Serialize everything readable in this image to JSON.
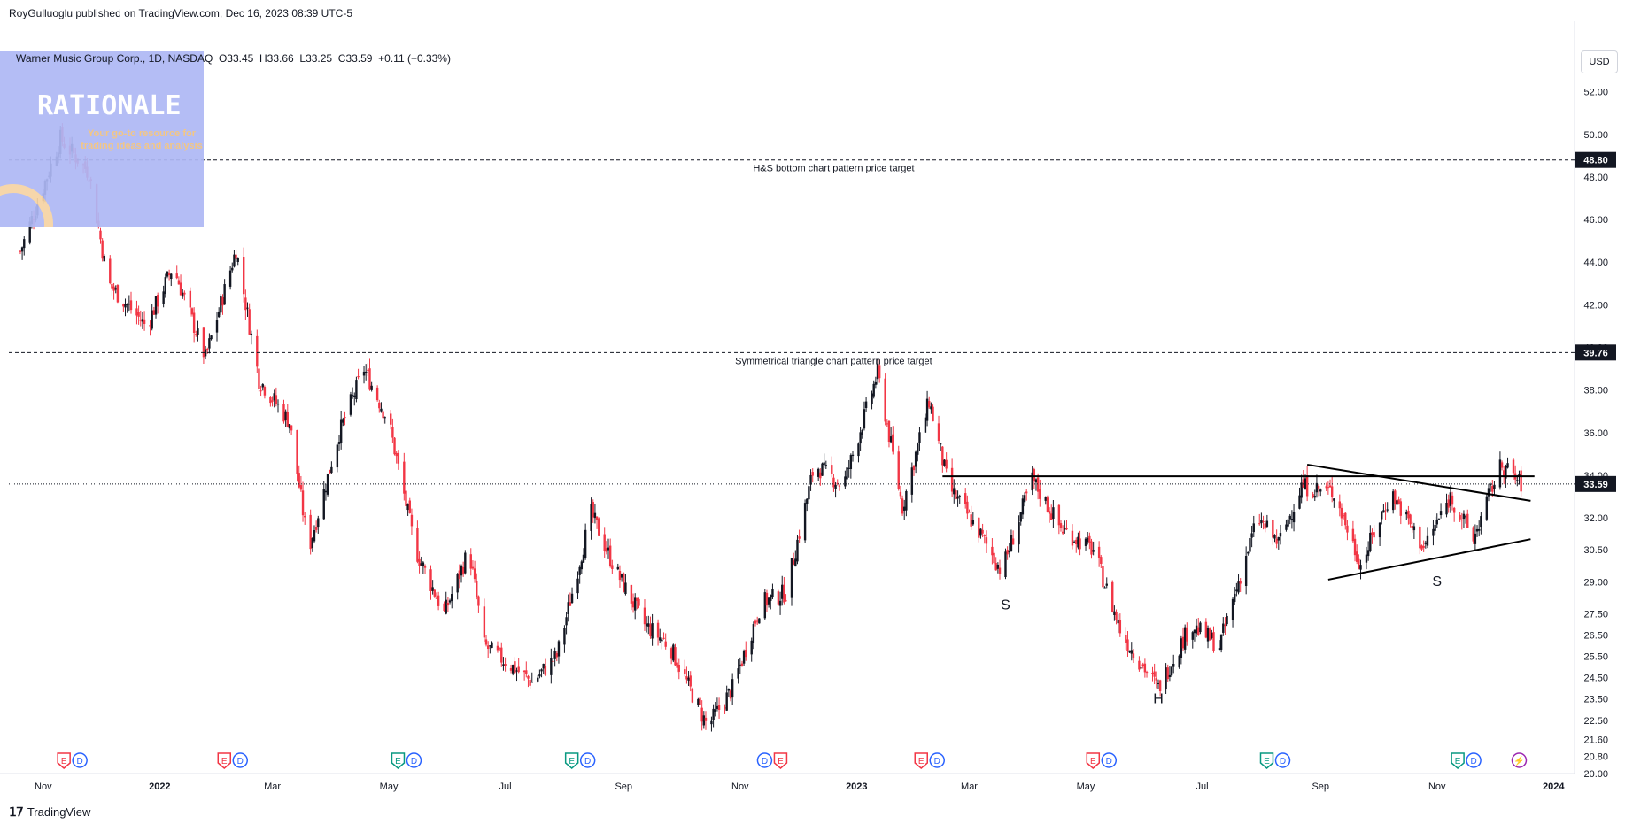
{
  "attribution": "RoyGulluoglu published on TradingView.com, Dec 16, 2023 08:39 UTC-5",
  "ohlc_line": {
    "symbol": "Warner Music Group Corp., 1D, NASDAQ",
    "o_label": "O",
    "o": "33.45",
    "h_label": "H",
    "h": "33.66",
    "l_label": "L",
    "l": "33.25",
    "c_label": "C",
    "c": "33.59",
    "change": "+0.11 (+0.33%)"
  },
  "logo": {
    "title": "RATIONALE",
    "tagline": "Your go-to resource for trading ideas and analysis"
  },
  "currency": "USD",
  "footer": {
    "brand": "TradingView"
  },
  "colors": {
    "up": "#131722",
    "down": "#f23645",
    "line": "#131722",
    "axis_tag": "#131722"
  },
  "chart_data": {
    "type": "candlestick",
    "title": "Warner Music Group Corp., 1D, NASDAQ",
    "ylim": [
      19.9,
      53.0
    ],
    "y_ticks": [
      "52.00",
      "50.00",
      "48.00",
      "46.00",
      "44.00",
      "42.00",
      "40.00",
      "38.00",
      "36.00",
      "34.00",
      "32.00",
      "30.50",
      "29.00",
      "27.50",
      "26.50",
      "25.50",
      "24.50",
      "23.50",
      "22.50",
      "21.60",
      "20.80",
      "20.00"
    ],
    "x_ticks": [
      "Nov",
      "2022",
      "Mar",
      "May",
      "Jul",
      "Sep",
      "Nov",
      "2023",
      "Mar",
      "May",
      "Jul",
      "Sep",
      "Nov",
      "2024"
    ],
    "current_price": "33.59",
    "price_path": [
      {
        "d": "2021-10-20",
        "p": 44.5
      },
      {
        "d": "2021-11-10",
        "p": 49.8
      },
      {
        "d": "2021-11-25",
        "p": 48.2
      },
      {
        "d": "2021-12-05",
        "p": 43.0
      },
      {
        "d": "2021-12-25",
        "p": 41.0
      },
      {
        "d": "2022-01-08",
        "p": 43.8
      },
      {
        "d": "2022-01-25",
        "p": 39.5
      },
      {
        "d": "2022-02-10",
        "p": 44.6
      },
      {
        "d": "2022-02-22",
        "p": 38.5
      },
      {
        "d": "2022-03-10",
        "p": 36.5
      },
      {
        "d": "2022-03-20",
        "p": 30.5
      },
      {
        "d": "2022-04-05",
        "p": 36.0
      },
      {
        "d": "2022-04-18",
        "p": 39.0
      },
      {
        "d": "2022-05-01",
        "p": 36.5
      },
      {
        "d": "2022-05-15",
        "p": 30.5
      },
      {
        "d": "2022-05-30",
        "p": 27.5
      },
      {
        "d": "2022-06-12",
        "p": 30.5
      },
      {
        "d": "2022-06-20",
        "p": 26.0
      },
      {
        "d": "2022-07-05",
        "p": 25.0
      },
      {
        "d": "2022-07-15",
        "p": 24.3
      },
      {
        "d": "2022-07-28",
        "p": 25.5
      },
      {
        "d": "2022-08-15",
        "p": 32.2
      },
      {
        "d": "2022-08-28",
        "p": 29.5
      },
      {
        "d": "2022-09-12",
        "p": 27.0
      },
      {
        "d": "2022-09-25",
        "p": 26.0
      },
      {
        "d": "2022-10-15",
        "p": 22.2
      },
      {
        "d": "2022-10-28",
        "p": 24.0
      },
      {
        "d": "2022-11-12",
        "p": 28.0
      },
      {
        "d": "2022-11-25",
        "p": 28.5
      },
      {
        "d": "2022-12-10",
        "p": 34.5
      },
      {
        "d": "2022-12-25",
        "p": 33.5
      },
      {
        "d": "2023-01-12",
        "p": 38.8
      },
      {
        "d": "2023-01-25",
        "p": 32.5
      },
      {
        "d": "2023-02-08",
        "p": 37.5
      },
      {
        "d": "2023-02-18",
        "p": 33.5
      },
      {
        "d": "2023-03-05",
        "p": 31.5
      },
      {
        "d": "2023-03-18",
        "p": 29.5
      },
      {
        "d": "2023-04-03",
        "p": 33.8
      },
      {
        "d": "2023-04-18",
        "p": 31.5
      },
      {
        "d": "2023-05-05",
        "p": 30.5
      },
      {
        "d": "2023-05-20",
        "p": 26.5
      },
      {
        "d": "2023-06-08",
        "p": 24.0
      },
      {
        "d": "2023-06-25",
        "p": 27.0
      },
      {
        "d": "2023-07-10",
        "p": 26.0
      },
      {
        "d": "2023-07-30",
        "p": 32.0
      },
      {
        "d": "2023-08-10",
        "p": 30.8
      },
      {
        "d": "2023-08-22",
        "p": 33.5
      },
      {
        "d": "2023-09-08",
        "p": 33.2
      },
      {
        "d": "2023-09-22",
        "p": 29.8
      },
      {
        "d": "2023-10-08",
        "p": 33.2
      },
      {
        "d": "2023-10-25",
        "p": 30.6
      },
      {
        "d": "2023-11-08",
        "p": 33.0
      },
      {
        "d": "2023-11-20",
        "p": 31.0
      },
      {
        "d": "2023-11-30",
        "p": 33.5
      },
      {
        "d": "2023-12-05",
        "p": 34.5
      },
      {
        "d": "2023-12-15",
        "p": 33.59
      }
    ],
    "horizontal_lines": [
      {
        "price": 48.8,
        "style": "dashed",
        "tag": "48.80",
        "label": "H&S bottom chart pattern price target"
      },
      {
        "price": 39.76,
        "style": "dashed",
        "tag": "39.76",
        "label": "Symmetrical triangle chart pattern price target"
      },
      {
        "price": 33.59,
        "style": "dotted",
        "tag": "33.59",
        "label": ""
      }
    ],
    "trend_lines": [
      {
        "from": {
          "d": "2023-02-15",
          "p": 33.95
        },
        "to": {
          "d": "2023-12-22",
          "p": 33.95
        }
      },
      {
        "from": {
          "d": "2023-08-25",
          "p": 34.5
        },
        "to": {
          "d": "2023-12-20",
          "p": 32.8
        }
      },
      {
        "from": {
          "d": "2023-09-05",
          "p": 29.1
        },
        "to": {
          "d": "2023-12-20",
          "p": 31.0
        }
      }
    ],
    "pattern_labels": [
      {
        "text": "S",
        "d": "2023-03-20",
        "p": 27.7
      },
      {
        "text": "H",
        "d": "2023-06-08",
        "p": 23.3
      },
      {
        "text": "S",
        "d": "2023-11-01",
        "p": 28.8
      }
    ],
    "events": [
      {
        "d": "2021-11-16",
        "items": [
          "E",
          "D"
        ]
      },
      {
        "d": "2022-02-08",
        "items": [
          "E",
          "D"
        ]
      },
      {
        "d": "2022-05-10",
        "items": [
          "E",
          "D"
        ]
      },
      {
        "d": "2022-08-09",
        "items": [
          "E",
          "D"
        ]
      },
      {
        "d": "2022-11-18",
        "items": [
          "D",
          "E"
        ]
      },
      {
        "d": "2023-02-08",
        "items": [
          "E",
          "D"
        ]
      },
      {
        "d": "2023-05-09",
        "items": [
          "E",
          "D"
        ]
      },
      {
        "d": "2023-08-08",
        "items": [
          "E",
          "D"
        ]
      },
      {
        "d": "2023-11-16",
        "items": [
          "E",
          "D"
        ]
      },
      {
        "d": "2023-12-14",
        "items": [
          "⚡"
        ]
      }
    ]
  }
}
